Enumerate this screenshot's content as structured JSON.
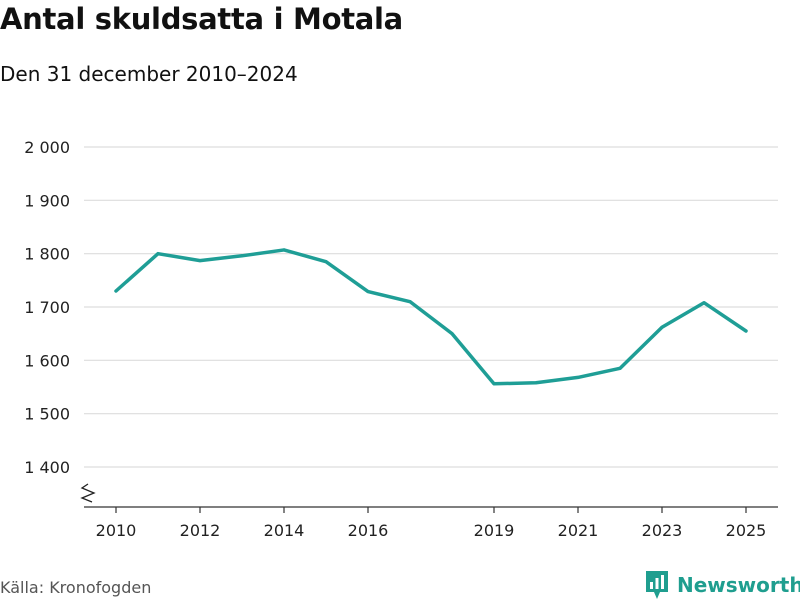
{
  "title": "Antal skuldsatta i Motala",
  "subtitle": "Den 31 december 2010–2024",
  "source": "Källa: Kronofogden",
  "brand": {
    "name": "Newsworthy",
    "color": "#1f9e8f"
  },
  "colors": {
    "line": "#1f9e96",
    "grid": "#dddddd",
    "axis": "#333333"
  },
  "chart_data": {
    "type": "line",
    "title": "Antal skuldsatta i Motala",
    "subtitle": "Den 31 december 2010–2024",
    "xlabel": "",
    "ylabel": "",
    "ylim": [
      1340,
      2000
    ],
    "xlim": [
      2010,
      2025
    ],
    "y_ticks": [
      1400,
      1500,
      1600,
      1700,
      1800,
      1900,
      2000
    ],
    "y_tick_labels": [
      "1 400",
      "1 500",
      "1 600",
      "1 700",
      "1 800",
      "1 900",
      "2 000"
    ],
    "x_ticks": [
      2010,
      2012,
      2014,
      2016,
      2019,
      2021,
      2023,
      2025
    ],
    "x_tick_labels": [
      "2010",
      "2012",
      "2014",
      "2016",
      "2019",
      "2021",
      "2023",
      "2025"
    ],
    "axis_break": true,
    "grid": true,
    "series": [
      {
        "name": "Antal skuldsatta",
        "x": [
          2010,
          2011,
          2012,
          2013,
          2014,
          2015,
          2016,
          2017,
          2018,
          2019,
          2020,
          2021,
          2022,
          2023,
          2024,
          2025
        ],
        "values": [
          1730,
          1800,
          1787,
          1796,
          1807,
          1785,
          1729,
          1710,
          1650,
          1556,
          1558,
          1568,
          1585,
          1662,
          1708,
          1655
        ]
      }
    ]
  }
}
